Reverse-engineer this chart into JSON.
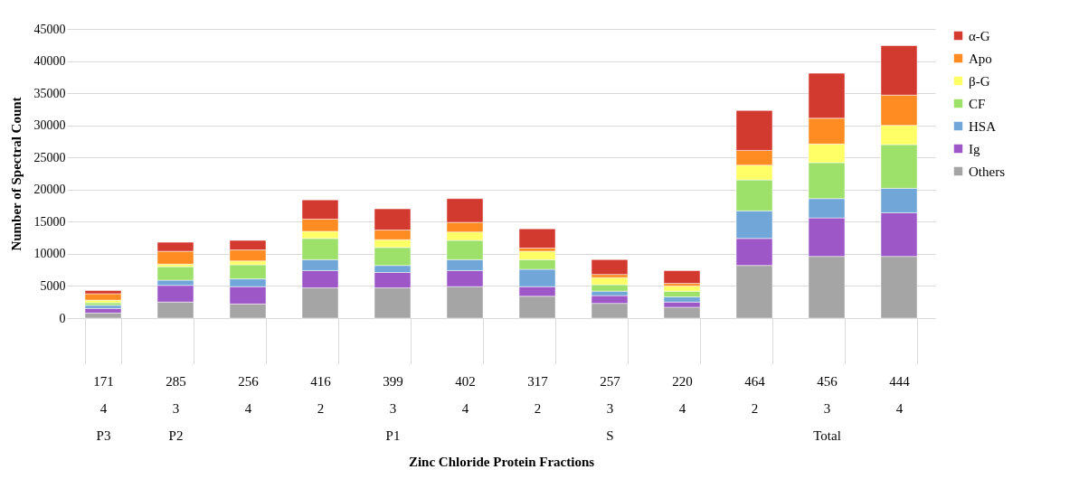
{
  "chart_data": {
    "type": "bar",
    "stacked": true,
    "ylabel": "Number of Spectral Count",
    "xlabel": "Zinc Chloride Protein Fractions",
    "categories": [
      "171\n4\nP3",
      "285\n3\nP2",
      "256\n4",
      "416\n2",
      "399\n3\nP1",
      "402\n4",
      "317\n2",
      "257\n3\nS",
      "220\n4",
      "464\n2",
      "456\n3\nTotal",
      "444\n4"
    ],
    "series": [
      {
        "name": "Others",
        "color": "#a5a5a5",
        "values": [
          800,
          2500,
          2200,
          4700,
          4700,
          4900,
          3400,
          2300,
          1700,
          8200,
          9600,
          9600
        ]
      },
      {
        "name": "Ig",
        "color": "#9e57c6",
        "values": [
          700,
          2600,
          2700,
          2700,
          2400,
          2500,
          1500,
          1200,
          800,
          4200,
          6000,
          6800
        ]
      },
      {
        "name": "HSA",
        "color": "#70a6d8",
        "values": [
          500,
          800,
          1200,
          1700,
          1100,
          1700,
          2700,
          700,
          800,
          4300,
          3000,
          3800
        ]
      },
      {
        "name": "CF",
        "color": "#9de06a",
        "values": [
          400,
          2100,
          2200,
          3300,
          2800,
          3000,
          1500,
          1000,
          900,
          4800,
          5600,
          6800
        ]
      },
      {
        "name": "β-G",
        "color": "#ffff66",
        "values": [
          400,
          400,
          600,
          1100,
          1200,
          1300,
          1300,
          1100,
          800,
          2300,
          2900,
          3000
        ]
      },
      {
        "name": "Apo",
        "color": "#ff8c22",
        "values": [
          1000,
          2000,
          1700,
          1900,
          1500,
          1500,
          500,
          500,
          400,
          2300,
          4000,
          4700
        ]
      },
      {
        "name": "α-G",
        "color": "#d33a2f",
        "values": [
          500,
          1400,
          1500,
          3000,
          3300,
          3700,
          3000,
          2300,
          2000,
          6200,
          7000,
          7700
        ]
      }
    ],
    "ylim": [
      0,
      45000
    ],
    "yticks": [
      0,
      5000,
      10000,
      15000,
      20000,
      25000,
      30000,
      35000,
      40000,
      45000
    ],
    "grid": "y",
    "legend": "right"
  }
}
